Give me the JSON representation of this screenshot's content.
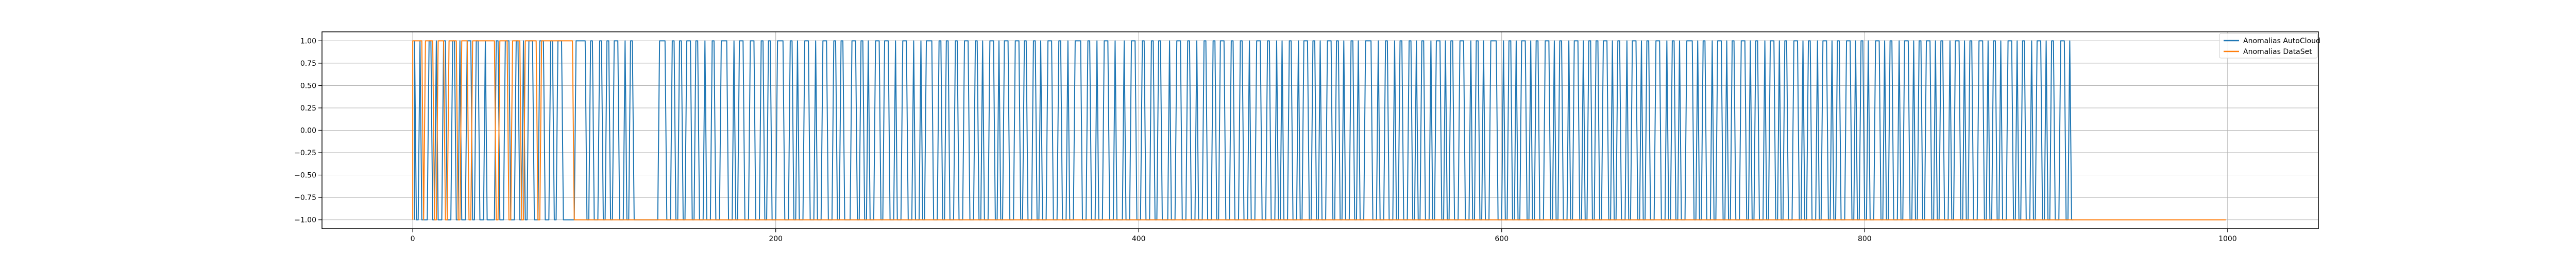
{
  "chart_data": {
    "type": "line",
    "title": "",
    "xlabel": "",
    "ylabel": "",
    "xlim": [
      -50,
      1050
    ],
    "ylim": [
      -1.1,
      1.1
    ],
    "xticks": [
      0,
      200,
      400,
      600,
      800,
      1000
    ],
    "xtick_labels": [
      "0",
      "200",
      "400",
      "600",
      "800",
      "1000"
    ],
    "yticks": [
      1.0,
      0.75,
      0.5,
      0.25,
      0.0,
      -0.25,
      -0.5,
      -0.75,
      -1.0
    ],
    "ytick_labels": [
      "1.00",
      "0.75",
      "0.50",
      "0.25",
      "0.00",
      "−0.25",
      "−0.50",
      "−0.75",
      "−1.00"
    ],
    "grid": true,
    "legend_position": "top-right",
    "series": [
      {
        "name": "Anomalias AutoCloud",
        "color": "#1f77b4",
        "x_range": [
          1,
          915
        ],
        "highs": [
          [
            1,
            1
          ],
          [
            4,
            4
          ],
          [
            9,
            10
          ],
          [
            13,
            13
          ],
          [
            17,
            18
          ],
          [
            22,
            23
          ],
          [
            26,
            26
          ],
          [
            30,
            32
          ],
          [
            35,
            36
          ],
          [
            40,
            40
          ],
          [
            46,
            47
          ],
          [
            51,
            53
          ],
          [
            57,
            58
          ],
          [
            61,
            61
          ],
          [
            64,
            66
          ],
          [
            70,
            72
          ],
          [
            76,
            77
          ],
          [
            80,
            82
          ],
          [
            90,
            95
          ],
          [
            98,
            99
          ],
          [
            103,
            104
          ],
          [
            107,
            108
          ],
          [
            111,
            113
          ],
          [
            117,
            117
          ],
          [
            120,
            121
          ],
          [
            136,
            139
          ],
          [
            143,
            144
          ],
          [
            147,
            148
          ],
          [
            151,
            153
          ],
          [
            156,
            157
          ],
          [
            161,
            161
          ],
          [
            165,
            166
          ],
          [
            170,
            173
          ],
          [
            177,
            177
          ],
          [
            180,
            182
          ],
          [
            186,
            188
          ],
          [
            192,
            193
          ],
          [
            196,
            197
          ],
          [
            201,
            204
          ],
          [
            208,
            209
          ],
          [
            212,
            212
          ],
          [
            216,
            218
          ],
          [
            222,
            222
          ],
          [
            226,
            228
          ],
          [
            232,
            233
          ],
          [
            236,
            237
          ],
          [
            242,
            244
          ],
          [
            247,
            248
          ],
          [
            251,
            251
          ],
          [
            255,
            257
          ],
          [
            260,
            262
          ],
          [
            266,
            266
          ],
          [
            270,
            272
          ],
          [
            276,
            276
          ],
          [
            280,
            280
          ],
          [
            283,
            286
          ],
          [
            290,
            291
          ],
          [
            294,
            295
          ],
          [
            299,
            300
          ],
          [
            304,
            306
          ],
          [
            310,
            311
          ],
          [
            314,
            314
          ],
          [
            318,
            320
          ],
          [
            323,
            323
          ],
          [
            326,
            328
          ],
          [
            332,
            334
          ],
          [
            337,
            338
          ],
          [
            342,
            343
          ],
          [
            346,
            346
          ],
          [
            350,
            352
          ],
          [
            356,
            357
          ],
          [
            361,
            361
          ],
          [
            365,
            368
          ],
          [
            372,
            373
          ],
          [
            377,
            377
          ],
          [
            381,
            383
          ],
          [
            387,
            387
          ],
          [
            392,
            392
          ],
          [
            396,
            398
          ],
          [
            402,
            403
          ],
          [
            407,
            408
          ],
          [
            411,
            412
          ],
          [
            417,
            417
          ],
          [
            421,
            423
          ],
          [
            427,
            428
          ],
          [
            432,
            432
          ],
          [
            436,
            437
          ],
          [
            441,
            442
          ],
          [
            445,
            447
          ],
          [
            451,
            452
          ],
          [
            456,
            457
          ],
          [
            461,
            461
          ],
          [
            465,
            467
          ],
          [
            471,
            472
          ],
          [
            476,
            476
          ],
          [
            479,
            479
          ],
          [
            483,
            484
          ],
          [
            488,
            488
          ],
          [
            491,
            493
          ],
          [
            496,
            497
          ],
          [
            500,
            500
          ],
          [
            504,
            506
          ],
          [
            509,
            510
          ],
          [
            513,
            513
          ],
          [
            517,
            518
          ],
          [
            521,
            521
          ],
          [
            525,
            528
          ],
          [
            532,
            532
          ],
          [
            536,
            537
          ],
          [
            541,
            541
          ],
          [
            544,
            545
          ],
          [
            549,
            550
          ],
          [
            553,
            553
          ],
          [
            556,
            557
          ],
          [
            561,
            561
          ],
          [
            564,
            566
          ],
          [
            569,
            569
          ],
          [
            572,
            573
          ],
          [
            577,
            579
          ],
          [
            583,
            583
          ],
          [
            586,
            587
          ],
          [
            590,
            590
          ],
          [
            594,
            597
          ],
          [
            601,
            601
          ],
          [
            604,
            605
          ],
          [
            608,
            608
          ],
          [
            611,
            613
          ],
          [
            616,
            616
          ],
          [
            619,
            620
          ],
          [
            624,
            626
          ],
          [
            629,
            629
          ],
          [
            632,
            633
          ],
          [
            637,
            637
          ],
          [
            640,
            642
          ],
          [
            645,
            645
          ],
          [
            648,
            649
          ],
          [
            652,
            653
          ],
          [
            656,
            658
          ],
          [
            661,
            661
          ],
          [
            664,
            665
          ],
          [
            669,
            669
          ],
          [
            672,
            674
          ],
          [
            677,
            677
          ],
          [
            680,
            681
          ],
          [
            685,
            687
          ],
          [
            691,
            691
          ],
          [
            694,
            695
          ],
          [
            698,
            698
          ],
          [
            702,
            705
          ],
          [
            708,
            708
          ],
          [
            711,
            712
          ],
          [
            716,
            716
          ],
          [
            719,
            721
          ],
          [
            724,
            724
          ],
          [
            727,
            728
          ],
          [
            732,
            734
          ],
          [
            737,
            737
          ],
          [
            740,
            741
          ],
          [
            745,
            745
          ],
          [
            748,
            750
          ],
          [
            753,
            753
          ],
          [
            756,
            757
          ],
          [
            761,
            763
          ],
          [
            766,
            766
          ],
          [
            769,
            770
          ],
          [
            774,
            774
          ],
          [
            777,
            779
          ],
          [
            782,
            782
          ],
          [
            785,
            786
          ],
          [
            790,
            792
          ],
          [
            795,
            795
          ],
          [
            798,
            799
          ],
          [
            802,
            802
          ],
          [
            806,
            808
          ],
          [
            811,
            811
          ],
          [
            814,
            815
          ],
          [
            819,
            819
          ],
          [
            822,
            824
          ],
          [
            827,
            827
          ],
          [
            830,
            831
          ],
          [
            834,
            836
          ],
          [
            839,
            839
          ],
          [
            842,
            843
          ],
          [
            847,
            847
          ],
          [
            850,
            852
          ],
          [
            855,
            855
          ],
          [
            858,
            859
          ],
          [
            863,
            865
          ],
          [
            868,
            868
          ],
          [
            871,
            872
          ],
          [
            875,
            875
          ],
          [
            879,
            881
          ],
          [
            884,
            884
          ],
          [
            887,
            888
          ],
          [
            892,
            892
          ],
          [
            895,
            897
          ],
          [
            900,
            900
          ],
          [
            903,
            904
          ],
          [
            908,
            910
          ],
          [
            913,
            913
          ]
        ]
      },
      {
        "name": "Anomalias DataSet",
        "color": "#ff7f0e",
        "x_range": [
          0,
          999
        ],
        "highs": [
          [
            0,
            5
          ],
          [
            7,
            11
          ],
          [
            14,
            17
          ],
          [
            20,
            24
          ],
          [
            27,
            30
          ],
          [
            33,
            45
          ],
          [
            48,
            52
          ],
          [
            55,
            59
          ],
          [
            62,
            68
          ],
          [
            71,
            88
          ]
        ]
      }
    ]
  }
}
